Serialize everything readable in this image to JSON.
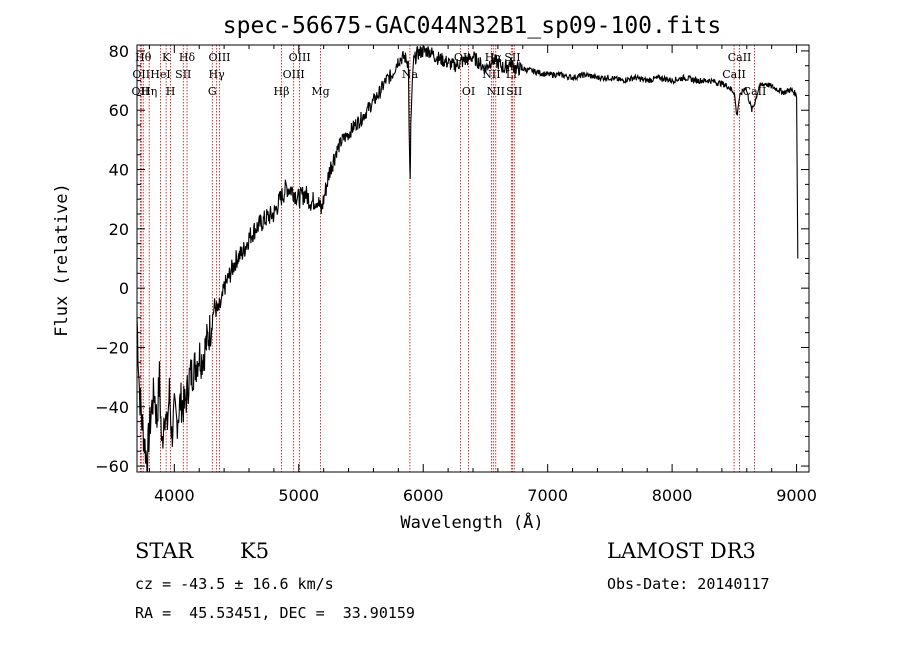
{
  "chart_data": {
    "type": "line",
    "title": "spec-56675-GAC044N32B1_sp09-100.fits",
    "xlabel": "Wavelength (Å)",
    "ylabel": "Flux (relative)",
    "xlim": [
      3700,
      9100
    ],
    "ylim": [
      -62,
      82
    ],
    "x_ticks": [
      4000,
      5000,
      6000,
      7000,
      8000,
      9000
    ],
    "y_ticks": [
      -60,
      -40,
      -20,
      0,
      20,
      40,
      60,
      80
    ],
    "series": [
      {
        "name": "flux",
        "points": [
          [
            3700,
            -10
          ],
          [
            3720,
            -35
          ],
          [
            3740,
            -45
          ],
          [
            3760,
            -52
          ],
          [
            3780,
            -58
          ],
          [
            3800,
            -48
          ],
          [
            3820,
            -40
          ],
          [
            3840,
            -35
          ],
          [
            3860,
            -45
          ],
          [
            3880,
            -30
          ],
          [
            3900,
            -55
          ],
          [
            3920,
            -40
          ],
          [
            3940,
            -48
          ],
          [
            3960,
            -35
          ],
          [
            3980,
            -50
          ],
          [
            4000,
            -42
          ],
          [
            4020,
            -45
          ],
          [
            4050,
            -38
          ],
          [
            4080,
            -40
          ],
          [
            4100,
            -36
          ],
          [
            4120,
            -30
          ],
          [
            4150,
            -28
          ],
          [
            4180,
            -25
          ],
          [
            4200,
            -22
          ],
          [
            4220,
            -24
          ],
          [
            4250,
            -20
          ],
          [
            4280,
            -15
          ],
          [
            4300,
            -12
          ],
          [
            4320,
            -6
          ],
          [
            4350,
            -8
          ],
          [
            4380,
            -5
          ],
          [
            4400,
            0
          ],
          [
            4450,
            5
          ],
          [
            4500,
            10
          ],
          [
            4550,
            12
          ],
          [
            4600,
            17
          ],
          [
            4650,
            20
          ],
          [
            4700,
            22
          ],
          [
            4750,
            24
          ],
          [
            4800,
            25
          ],
          [
            4850,
            30
          ],
          [
            4880,
            32
          ],
          [
            4900,
            34
          ],
          [
            4950,
            33
          ],
          [
            5000,
            30
          ],
          [
            5050,
            32
          ],
          [
            5100,
            29
          ],
          [
            5150,
            30
          ],
          [
            5180,
            26
          ],
          [
            5200,
            30
          ],
          [
            5250,
            40
          ],
          [
            5300,
            46
          ],
          [
            5350,
            50
          ],
          [
            5400,
            52
          ],
          [
            5450,
            55
          ],
          [
            5500,
            57
          ],
          [
            5550,
            60
          ],
          [
            5600,
            63
          ],
          [
            5650,
            66
          ],
          [
            5700,
            70
          ],
          [
            5750,
            72
          ],
          [
            5800,
            77
          ],
          [
            5850,
            78
          ],
          [
            5880,
            76
          ],
          [
            5890,
            45
          ],
          [
            5895,
            35
          ],
          [
            5900,
            55
          ],
          [
            5920,
            76
          ],
          [
            5950,
            79
          ],
          [
            6000,
            80
          ],
          [
            6050,
            80
          ],
          [
            6100,
            78
          ],
          [
            6150,
            77
          ],
          [
            6200,
            76
          ],
          [
            6250,
            75
          ],
          [
            6300,
            76
          ],
          [
            6350,
            77
          ],
          [
            6400,
            78
          ],
          [
            6450,
            76
          ],
          [
            6500,
            74
          ],
          [
            6550,
            77
          ],
          [
            6600,
            76
          ],
          [
            6650,
            74
          ],
          [
            6700,
            76
          ],
          [
            6750,
            74
          ],
          [
            6800,
            74
          ],
          [
            6900,
            73
          ],
          [
            7000,
            72
          ],
          [
            7100,
            72
          ],
          [
            7200,
            71
          ],
          [
            7300,
            72
          ],
          [
            7400,
            71
          ],
          [
            7500,
            71
          ],
          [
            7600,
            70
          ],
          [
            7700,
            71
          ],
          [
            7800,
            70
          ],
          [
            7900,
            71
          ],
          [
            8000,
            70
          ],
          [
            8100,
            71
          ],
          [
            8200,
            70
          ],
          [
            8300,
            70
          ],
          [
            8400,
            69
          ],
          [
            8450,
            68
          ],
          [
            8500,
            66
          ],
          [
            8520,
            58
          ],
          [
            8540,
            64
          ],
          [
            8560,
            66
          ],
          [
            8590,
            68
          ],
          [
            8640,
            60
          ],
          [
            8660,
            62
          ],
          [
            8700,
            68
          ],
          [
            8750,
            69
          ],
          [
            8800,
            68
          ],
          [
            8850,
            67
          ],
          [
            8900,
            66
          ],
          [
            8950,
            67
          ],
          [
            8980,
            66
          ],
          [
            9000,
            65
          ],
          [
            9010,
            10
          ]
        ]
      }
    ],
    "line_markers": [
      {
        "wavelength": 3750,
        "label": "Hθ",
        "row": 0
      },
      {
        "wavelength": 3734,
        "label": "OII",
        "row": 1
      },
      {
        "wavelength": 3727,
        "label": "OII",
        "row": 2
      },
      {
        "wavelength": 3798,
        "label": "Hη",
        "row": 2
      },
      {
        "wavelength": 3889,
        "label": "HeI",
        "row": 1
      },
      {
        "wavelength": 3934,
        "label": "K",
        "row": 0
      },
      {
        "wavelength": 3970,
        "label": "H",
        "row": 2
      },
      {
        "wavelength": 4072,
        "label": "SII",
        "row": 1
      },
      {
        "wavelength": 4102,
        "label": "Hδ",
        "row": 0
      },
      {
        "wavelength": 4340,
        "label": "Hγ",
        "row": 1
      },
      {
        "wavelength": 4305,
        "label": "G",
        "row": 2
      },
      {
        "wavelength": 4363,
        "label": "OIII",
        "row": 0
      },
      {
        "wavelength": 4861,
        "label": "Hβ",
        "row": 2
      },
      {
        "wavelength": 5007,
        "label": "OIII",
        "row": 0
      },
      {
        "wavelength": 4959,
        "label": "OIII",
        "row": 1
      },
      {
        "wavelength": 5175,
        "label": "Mg",
        "row": 2
      },
      {
        "wavelength": 5893,
        "label": "Na",
        "row": 1
      },
      {
        "wavelength": 6300,
        "label": "OI",
        "row": 0
      },
      {
        "wavelength": 6364,
        "label": "OI",
        "row": 2
      },
      {
        "wavelength": 6563,
        "label": "Hα",
        "row": 0
      },
      {
        "wavelength": 6548,
        "label": "NII",
        "row": 1
      },
      {
        "wavelength": 6583,
        "label": "NII",
        "row": 2
      },
      {
        "wavelength": 6717,
        "label": "SII",
        "row": 0
      },
      {
        "wavelength": 6708,
        "label": "Li",
        "row": 1
      },
      {
        "wavelength": 6731,
        "label": "SII",
        "row": 2
      },
      {
        "wavelength": 8542,
        "label": "CaII",
        "row": 0
      },
      {
        "wavelength": 8498,
        "label": "CaII",
        "row": 1
      },
      {
        "wavelength": 8662,
        "label": "CaII",
        "row": 2
      }
    ]
  },
  "info": {
    "object_class": "STAR",
    "subclass": "K5",
    "survey": "LAMOST DR3",
    "redshift": "cz = -43.5 ± 16.6 km/s",
    "obs_date": "Obs-Date: 20140117",
    "coords": "RA =  45.53451, DEC =  33.90159"
  },
  "colors": {
    "axis": "#000000",
    "marker_line": "#cc0000",
    "spectrum": "#000000"
  }
}
